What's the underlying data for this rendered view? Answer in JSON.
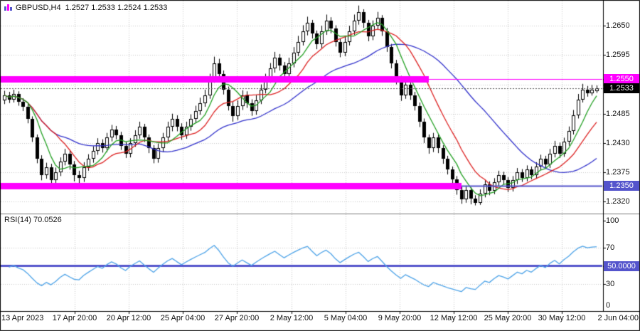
{
  "header": {
    "symbol": "GBPUSD,H4",
    "ohlc": "1.2527 1.2533 1.2524 1.2533"
  },
  "indicator": {
    "name": "RSI(14)",
    "value": "70.0526"
  },
  "badges": {
    "resistance": {
      "label": "1.2550",
      "color": "#FF00FF"
    },
    "current": {
      "label": "1.2533",
      "color": "#000000"
    },
    "support": {
      "label": "1.2350",
      "color": "#5454CC"
    },
    "rsi_mid": {
      "label": "50.0000",
      "color": "#5454CC"
    }
  },
  "colors": {
    "background": "#FFFFFF",
    "grid": "#C9C9C9",
    "axis_text": "#111111",
    "candle_up": "#FFFFFF",
    "candle_down": "#000000",
    "candle_outline": "#000000",
    "magenta": "#FF00FF",
    "purple_line": "#5454CC",
    "current_price_line": "#555555",
    "separator": "#808080",
    "frame": "#000000"
  },
  "time_axis": {
    "labels": [
      "13 Apr 2023",
      "17 Apr 20:00",
      "20 Apr 12:00",
      "25 Apr 04:00",
      "27 Apr 20:00",
      "2 May 12:00",
      "5 May 04:00",
      "9 May 20:00",
      "12 May 12:00",
      "25 May 20:00",
      "30 May 12:00",
      "2 Jun 04:00"
    ]
  },
  "chart_data": {
    "type": "candlestick",
    "title": "GBPUSD,H4",
    "symbol": "GBPUSD",
    "timeframe": "H4",
    "legend_position": "none",
    "grid": true,
    "y_axis": {
      "range": [
        1.2299,
        1.2693
      ],
      "grid_values": [
        1.265,
        1.2595,
        1.254,
        1.2485,
        1.243,
        1.2375,
        1.232
      ],
      "ticks": [
        {
          "label": "1.2650",
          "value": 1.265
        },
        {
          "label": "1.2595",
          "value": 1.2595
        },
        {
          "label": "1.2485",
          "value": 1.2485
        },
        {
          "label": "1.2430",
          "value": 1.243
        },
        {
          "label": "1.2375",
          "value": 1.2375
        },
        {
          "label": "1.2320",
          "value": 1.232
        }
      ]
    },
    "candles": [
      [
        1.251,
        1.2528,
        1.2503,
        1.252
      ],
      [
        1.252,
        1.2526,
        1.2505,
        1.2512
      ],
      [
        1.2512,
        1.253,
        1.2506,
        1.2522
      ],
      [
        1.2522,
        1.2527,
        1.25,
        1.2508
      ],
      [
        1.2508,
        1.2514,
        1.249,
        1.2498
      ],
      [
        1.2498,
        1.2503,
        1.2467,
        1.2475
      ],
      [
        1.2475,
        1.248,
        1.2432,
        1.244
      ],
      [
        1.244,
        1.2446,
        1.2392,
        1.24
      ],
      [
        1.24,
        1.2407,
        1.236,
        1.237
      ],
      [
        1.237,
        1.2393,
        1.2363,
        1.2385
      ],
      [
        1.2385,
        1.2391,
        1.2349,
        1.236
      ],
      [
        1.236,
        1.2384,
        1.2352,
        1.2375
      ],
      [
        1.2375,
        1.2403,
        1.2368,
        1.2395
      ],
      [
        1.2395,
        1.2419,
        1.2388,
        1.241
      ],
      [
        1.241,
        1.2416,
        1.238,
        1.239
      ],
      [
        1.239,
        1.2396,
        1.2358,
        1.237
      ],
      [
        1.237,
        1.2378,
        1.235,
        1.2365
      ],
      [
        1.2365,
        1.2394,
        1.2357,
        1.2385
      ],
      [
        1.2385,
        1.2409,
        1.2378,
        1.24
      ],
      [
        1.24,
        1.2424,
        1.2393,
        1.2415
      ],
      [
        1.2415,
        1.2439,
        1.2408,
        1.243
      ],
      [
        1.243,
        1.2437,
        1.2412,
        1.242
      ],
      [
        1.242,
        1.2449,
        1.2413,
        1.244
      ],
      [
        1.244,
        1.2464,
        1.2433,
        1.2455
      ],
      [
        1.2455,
        1.2462,
        1.2437,
        1.2445
      ],
      [
        1.2445,
        1.2451,
        1.2417,
        1.2425
      ],
      [
        1.2425,
        1.2432,
        1.2402,
        1.241
      ],
      [
        1.241,
        1.2439,
        1.2403,
        1.243
      ],
      [
        1.243,
        1.2454,
        1.2423,
        1.2445
      ],
      [
        1.2445,
        1.247,
        1.2438,
        1.246
      ],
      [
        1.246,
        1.2466,
        1.2432,
        1.244
      ],
      [
        1.244,
        1.2446,
        1.2411,
        1.242
      ],
      [
        1.242,
        1.2426,
        1.2392,
        1.24
      ],
      [
        1.24,
        1.2429,
        1.2393,
        1.242
      ],
      [
        1.242,
        1.2449,
        1.2413,
        1.244
      ],
      [
        1.244,
        1.247,
        1.2433,
        1.246
      ],
      [
        1.246,
        1.2485,
        1.2452,
        1.2475
      ],
      [
        1.2475,
        1.2482,
        1.2452,
        1.246
      ],
      [
        1.246,
        1.2467,
        1.2436,
        1.2445
      ],
      [
        1.2445,
        1.247,
        1.2438,
        1.246
      ],
      [
        1.246,
        1.2484,
        1.2453,
        1.2475
      ],
      [
        1.2475,
        1.25,
        1.2468,
        1.249
      ],
      [
        1.249,
        1.2515,
        1.2483,
        1.2505
      ],
      [
        1.2505,
        1.253,
        1.2498,
        1.252
      ],
      [
        1.252,
        1.256,
        1.2513,
        1.255
      ],
      [
        1.255,
        1.2592,
        1.2543,
        1.258
      ],
      [
        1.258,
        1.2588,
        1.255,
        1.256
      ],
      [
        1.256,
        1.2566,
        1.2521,
        1.253
      ],
      [
        1.253,
        1.2536,
        1.2491,
        1.25
      ],
      [
        1.25,
        1.2507,
        1.247,
        1.248
      ],
      [
        1.248,
        1.251,
        1.2473,
        1.25
      ],
      [
        1.25,
        1.2529,
        1.2492,
        1.252
      ],
      [
        1.252,
        1.2527,
        1.2496,
        1.2505
      ],
      [
        1.2505,
        1.2512,
        1.2481,
        1.249
      ],
      [
        1.249,
        1.252,
        1.2483,
        1.251
      ],
      [
        1.251,
        1.254,
        1.2503,
        1.253
      ],
      [
        1.253,
        1.256,
        1.2523,
        1.255
      ],
      [
        1.255,
        1.258,
        1.2543,
        1.257
      ],
      [
        1.257,
        1.2601,
        1.2562,
        1.259
      ],
      [
        1.259,
        1.2597,
        1.2566,
        1.2575
      ],
      [
        1.2575,
        1.2582,
        1.2551,
        1.256
      ],
      [
        1.256,
        1.259,
        1.2553,
        1.258
      ],
      [
        1.258,
        1.261,
        1.2572,
        1.26
      ],
      [
        1.26,
        1.2631,
        1.2593,
        1.262
      ],
      [
        1.262,
        1.2651,
        1.2613,
        1.264
      ],
      [
        1.264,
        1.2667,
        1.2632,
        1.2655
      ],
      [
        1.2655,
        1.2661,
        1.2626,
        1.2635
      ],
      [
        1.2635,
        1.2641,
        1.2606,
        1.2615
      ],
      [
        1.2615,
        1.265,
        1.2608,
        1.264
      ],
      [
        1.264,
        1.2671,
        1.2633,
        1.266
      ],
      [
        1.266,
        1.2666,
        1.2636,
        1.2645
      ],
      [
        1.2645,
        1.2651,
        1.2611,
        1.262
      ],
      [
        1.262,
        1.2626,
        1.2591,
        1.26
      ],
      [
        1.26,
        1.263,
        1.2593,
        1.262
      ],
      [
        1.262,
        1.265,
        1.2613,
        1.264
      ],
      [
        1.264,
        1.2671,
        1.2633,
        1.266
      ],
      [
        1.266,
        1.2688,
        1.2652,
        1.2675
      ],
      [
        1.2675,
        1.2681,
        1.2646,
        1.2655
      ],
      [
        1.2655,
        1.2661,
        1.2621,
        1.263
      ],
      [
        1.263,
        1.266,
        1.2623,
        1.265
      ],
      [
        1.265,
        1.2676,
        1.2642,
        1.2665
      ],
      [
        1.2665,
        1.267,
        1.2631,
        1.264
      ],
      [
        1.264,
        1.2646,
        1.2601,
        1.261
      ],
      [
        1.261,
        1.2616,
        1.257,
        1.258
      ],
      [
        1.258,
        1.2586,
        1.254,
        1.255
      ],
      [
        1.255,
        1.2556,
        1.2509,
        1.252
      ],
      [
        1.252,
        1.2549,
        1.2513,
        1.254
      ],
      [
        1.254,
        1.2546,
        1.2511,
        1.252
      ],
      [
        1.252,
        1.2526,
        1.2491,
        1.25
      ],
      [
        1.25,
        1.2506,
        1.246,
        1.247
      ],
      [
        1.247,
        1.2476,
        1.243,
        1.244
      ],
      [
        1.244,
        1.2446,
        1.241,
        1.242
      ],
      [
        1.242,
        1.2449,
        1.2413,
        1.244
      ],
      [
        1.244,
        1.2446,
        1.2411,
        1.242
      ],
      [
        1.242,
        1.2426,
        1.2391,
        1.24
      ],
      [
        1.24,
        1.2406,
        1.2371,
        1.238
      ],
      [
        1.238,
        1.2386,
        1.2354,
        1.2362
      ],
      [
        1.2362,
        1.2368,
        1.2333,
        1.2342
      ],
      [
        1.2342,
        1.2348,
        1.2316,
        1.2325
      ],
      [
        1.2325,
        1.235,
        1.2318,
        1.2342
      ],
      [
        1.2342,
        1.2347,
        1.2315,
        1.2326
      ],
      [
        1.2326,
        1.2332,
        1.2313,
        1.2318
      ],
      [
        1.2318,
        1.2343,
        1.2314,
        1.2335
      ],
      [
        1.2335,
        1.236,
        1.2328,
        1.2352
      ],
      [
        1.2352,
        1.2358,
        1.2332,
        1.234
      ],
      [
        1.234,
        1.2364,
        1.2334,
        1.2356
      ],
      [
        1.2356,
        1.2378,
        1.2349,
        1.237
      ],
      [
        1.237,
        1.2376,
        1.2352,
        1.236
      ],
      [
        1.236,
        1.2366,
        1.2338,
        1.2346
      ],
      [
        1.2346,
        1.2368,
        1.2339,
        1.236
      ],
      [
        1.236,
        1.2383,
        1.2353,
        1.2375
      ],
      [
        1.2375,
        1.2381,
        1.2357,
        1.2365
      ],
      [
        1.2365,
        1.2388,
        1.2358,
        1.238
      ],
      [
        1.238,
        1.2386,
        1.2362,
        1.237
      ],
      [
        1.237,
        1.2394,
        1.2363,
        1.2386
      ],
      [
        1.2386,
        1.2408,
        1.2379,
        1.24
      ],
      [
        1.24,
        1.2406,
        1.2382,
        1.239
      ],
      [
        1.239,
        1.2419,
        1.2383,
        1.241
      ],
      [
        1.241,
        1.2434,
        1.2403,
        1.2425
      ],
      [
        1.2425,
        1.2431,
        1.2402,
        1.241
      ],
      [
        1.241,
        1.244,
        1.2404,
        1.2432
      ],
      [
        1.2432,
        1.2461,
        1.2425,
        1.2452
      ],
      [
        1.2452,
        1.2492,
        1.2446,
        1.2482
      ],
      [
        1.2482,
        1.2522,
        1.2476,
        1.2512
      ],
      [
        1.2512,
        1.2541,
        1.2506,
        1.253
      ],
      [
        1.253,
        1.2537,
        1.2517,
        1.2524
      ],
      [
        1.2524,
        1.2539,
        1.2519,
        1.253
      ],
      [
        1.2527,
        1.2538,
        1.2524,
        1.2533
      ]
    ],
    "moving_averages": [
      {
        "name": "ma-slow",
        "period": 30,
        "color": "#3333CC"
      },
      {
        "name": "ma-medium",
        "period": 12,
        "color": "#DD2222"
      },
      {
        "name": "ma-fast",
        "period": 6,
        "color": "#22A022"
      }
    ],
    "lines": [
      {
        "id": "resistance-line",
        "price": 1.255,
        "color": "#FF00FF",
        "width": 1,
        "extent": "full"
      },
      {
        "id": "resistance-band",
        "price": 1.255,
        "color": "#FF00FF",
        "width": 9,
        "extent": "partial",
        "end_index": 91
      },
      {
        "id": "support-line",
        "price": 1.235,
        "color": "#5454CC",
        "width": 2,
        "extent": "full"
      },
      {
        "id": "support-band",
        "price": 1.235,
        "color": "#FF00FF",
        "width": 9,
        "extent": "partial",
        "end_index": 98
      },
      {
        "id": "current-price-line",
        "price": 1.2533,
        "color": "#555555",
        "width": 1,
        "style": "dotted",
        "extent": "full"
      }
    ],
    "rsi": {
      "period": 14,
      "current_value": 70.0526,
      "color": "#4DA3E8",
      "range": [
        0,
        100
      ],
      "mid_line": {
        "value": 50,
        "color": "#5454CC",
        "width": 3
      },
      "dotted_levels": [
        70,
        30
      ],
      "scale_labels": [
        {
          "label": "100",
          "value": 100
        },
        {
          "label": "70",
          "value": 70
        },
        {
          "label": "30",
          "value": 30
        },
        {
          "label": "0",
          "value": 0
        }
      ]
    }
  }
}
